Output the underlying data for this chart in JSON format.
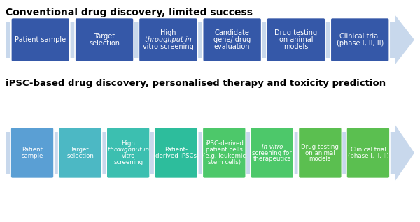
{
  "title1": "Conventional drug discovery, limited success",
  "title2": "iPSC-based drug discovery, personalised therapy and toxicity prediction",
  "row1_labels": [
    "Patient sample",
    "Target\nselection",
    "High\nthroughput ⁠in\n⁠vitro screening",
    "Candidate\ngene/ drug\nevaluation",
    "Drug testing\non animal\nmodels",
    "Clinical trial\n(phase I, II, II)"
  ],
  "row1_italic_map": [
    [],
    [],
    [
      1
    ],
    [],
    [],
    []
  ],
  "row2_labels": [
    "Patient\nsample",
    "Target\nselection",
    "High\nthroughput ⁠in\n⁠vitro\nscreening",
    "Patient-\nderived iPSCs",
    "iPSC-derived\npatient cells\n(e.g. leukemic\nstem cells)",
    "⁠In vitro\nscreening for\ntherapeutics",
    "Drug testing\non animal\nmodels",
    "Clinical trial\n(phase I, II, II)"
  ],
  "row2_italic_map": [
    [],
    [],
    [
      1
    ],
    [],
    [],
    [
      0
    ],
    [],
    []
  ],
  "row1_colors": [
    "#3558A8",
    "#3558A8",
    "#3558A8",
    "#3558A8",
    "#3558A8",
    "#3558A8"
  ],
  "row2_colors": [
    "#5A9FD4",
    "#4CB8C4",
    "#3CBFB0",
    "#2DBD9C",
    "#4DC86A",
    "#4DC86A",
    "#5BBF50",
    "#5BBF50"
  ],
  "arrow_color": "#C8D8EC",
  "bg_color": "#FFFFFF",
  "title1_fontsize": 10,
  "title2_fontsize": 9.5,
  "label_fontsize_row1": 7,
  "label_fontsize_row2": 6.2
}
